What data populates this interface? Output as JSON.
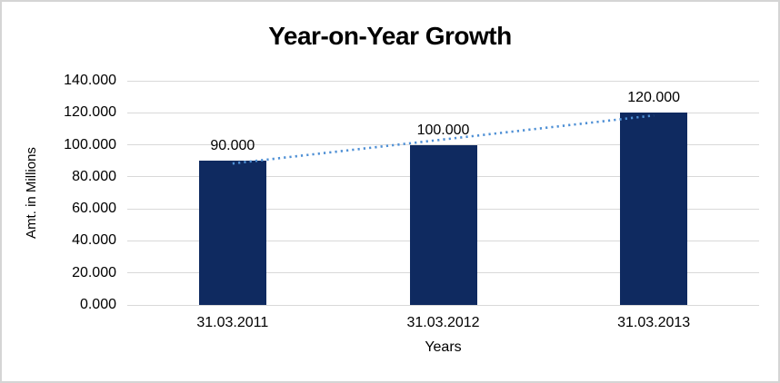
{
  "chart_data": {
    "type": "bar",
    "title": "Year-on-Year Growth",
    "xlabel": "Years",
    "ylabel": "Amt. in Millions",
    "categories": [
      "31.03.2011",
      "31.03.2012",
      "31.03.2013"
    ],
    "values": [
      90,
      100,
      120
    ],
    "data_labels": [
      "90.000",
      "100.000",
      "120.000"
    ],
    "y_ticks": [
      "0.000",
      "20.000",
      "40.000",
      "60.000",
      "80.000",
      "100.000",
      "120.000",
      "140.000"
    ],
    "ylim": [
      0,
      140
    ],
    "y_step": 20,
    "grid": true,
    "legend": "none",
    "trendline": {
      "style": "dotted",
      "fit": "linear"
    },
    "colors": {
      "bar": "#0f2a60",
      "trendline": "#4f90d5",
      "gridline": "#d9d9d9",
      "text": "#000000",
      "frame_border": "#d5d5d5",
      "background": "#ffffff"
    }
  }
}
